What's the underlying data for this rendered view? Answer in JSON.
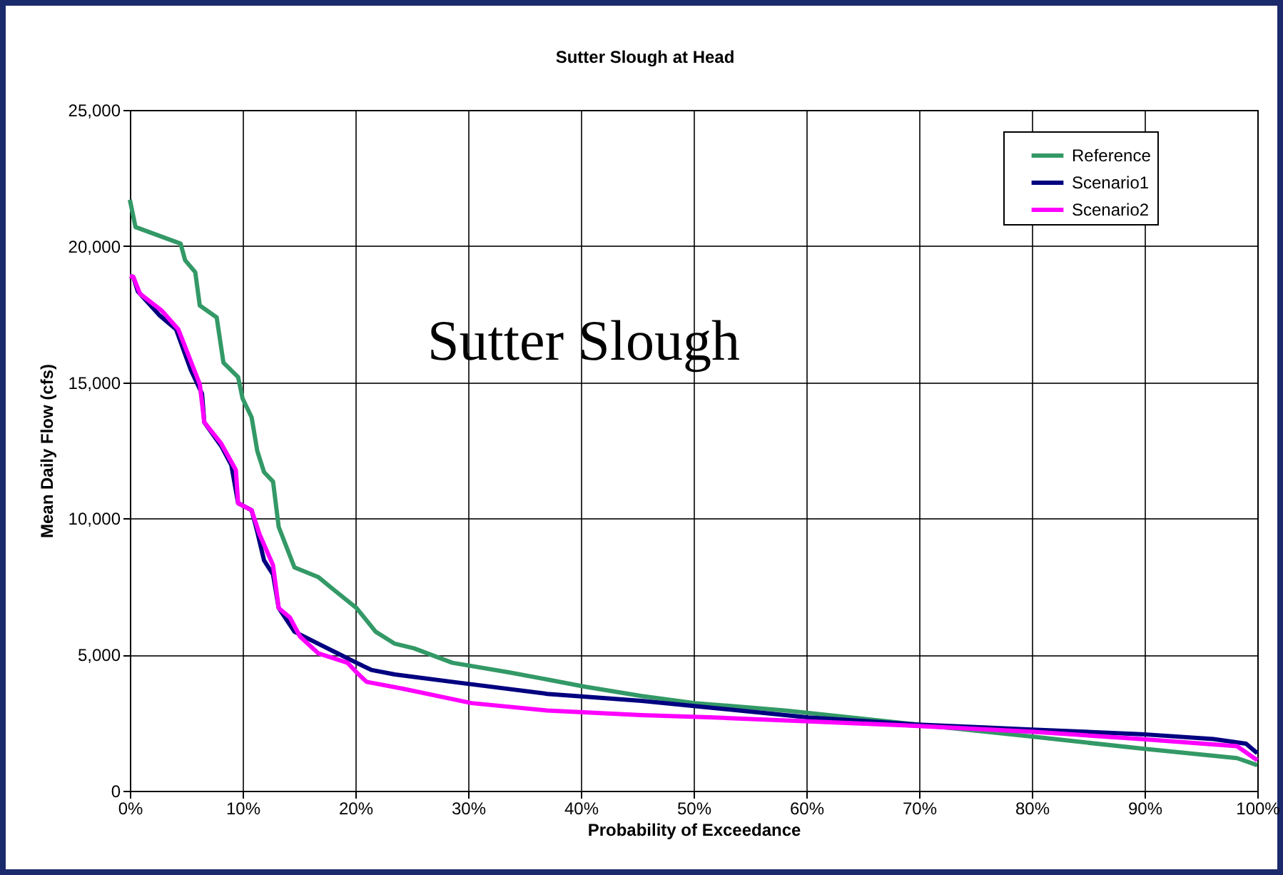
{
  "chart_data": {
    "type": "line",
    "title": "Sutter Slough at Head",
    "xlabel": "Probability of Exceedance",
    "ylabel": "Mean Daily Flow (cfs)",
    "annotations": [
      "Sutter Slough"
    ],
    "xlim": [
      0,
      100
    ],
    "xticks": [
      {
        "value": 0,
        "label": "0%"
      },
      {
        "value": 10,
        "label": "10%"
      },
      {
        "value": 20,
        "label": "20%"
      },
      {
        "value": 30,
        "label": "30%"
      },
      {
        "value": 40,
        "label": "40%"
      },
      {
        "value": 50,
        "label": "50%"
      },
      {
        "value": 60,
        "label": "60%"
      },
      {
        "value": 70,
        "label": "70%"
      },
      {
        "value": 80,
        "label": "80%"
      },
      {
        "value": 90,
        "label": "90%"
      },
      {
        "value": 100,
        "label": "100%"
      }
    ],
    "ylim": [
      0,
      25000
    ],
    "yticks": [
      0,
      {
        "value": 5000,
        "label": "5,000"
      },
      {
        "value": 10000,
        "label": "10,000"
      },
      {
        "value": 15000,
        "label": "15,000"
      },
      {
        "value": 20000,
        "label": "20,000"
      },
      {
        "value": 25000,
        "label": "25,000"
      }
    ],
    "grid": true,
    "legend": "top right",
    "marker": "none",
    "line_style": "solid",
    "series": [
      {
        "name": "Reference",
        "color": "#339966",
        "x": [
          0,
          0.5,
          4.5,
          4.9,
          5.8,
          6.2,
          7.7,
          8.3,
          9.6,
          10,
          10.8,
          11.3,
          11.9,
          12.7,
          13.2,
          14.6,
          16.7,
          18,
          20.1,
          21.8,
          23.5,
          25.2,
          28.6,
          33.6,
          37,
          40.4,
          45.4,
          50.1,
          58.1,
          60.2,
          69.9,
          80,
          89.7,
          98.2,
          100
        ],
        "values": [
          21700,
          20700,
          20090,
          19480,
          19040,
          17820,
          17380,
          15720,
          15190,
          14400,
          13710,
          12480,
          11700,
          11350,
          9690,
          8200,
          7850,
          7410,
          6710,
          5840,
          5400,
          5230,
          4700,
          4350,
          4090,
          3820,
          3480,
          3220,
          2950,
          2860,
          2430,
          1990,
          1550,
          1200,
          940
        ]
      },
      {
        "name": "Scenario1",
        "color": "#000080",
        "x": [
          0,
          0.3,
          0.7,
          2.6,
          4.1,
          5.4,
          6.4,
          6.6,
          8.1,
          9,
          9.6,
          10.8,
          11.3,
          11.9,
          12.7,
          13.2,
          14.6,
          16.7,
          18.4,
          20.1,
          21.4,
          23.5,
          28.6,
          37,
          45.4,
          51.8,
          60.2,
          69.9,
          80,
          89.7,
          96.1,
          99,
          100
        ],
        "values": [
          18900,
          18870,
          18340,
          17470,
          16940,
          15460,
          14580,
          13530,
          12660,
          11960,
          10560,
          10300,
          9510,
          8460,
          7940,
          6710,
          5840,
          5400,
          5050,
          4700,
          4440,
          4270,
          4000,
          3560,
          3300,
          3040,
          2690,
          2430,
          2250,
          2080,
          1900,
          1730,
          1380
        ]
      },
      {
        "name": "Scenario2",
        "color": "#ff00ff",
        "x": [
          0,
          0.3,
          0.9,
          2.8,
          4.3,
          6.2,
          6.6,
          8.1,
          9.4,
          9.6,
          10.8,
          11.5,
          12.7,
          13.2,
          14.2,
          15.1,
          16.7,
          19.3,
          20.3,
          21,
          24.3,
          30.3,
          37,
          45.4,
          51.8,
          60.2,
          69.9,
          80,
          89.7,
          98.2,
          100
        ],
        "values": [
          18900,
          18870,
          18250,
          17640,
          16940,
          14930,
          13530,
          12750,
          11780,
          10560,
          10300,
          9420,
          8280,
          6710,
          6360,
          5660,
          5050,
          4700,
          4270,
          4000,
          3740,
          3220,
          2950,
          2780,
          2690,
          2550,
          2380,
          2170,
          1900,
          1640,
          1120
        ]
      }
    ]
  }
}
